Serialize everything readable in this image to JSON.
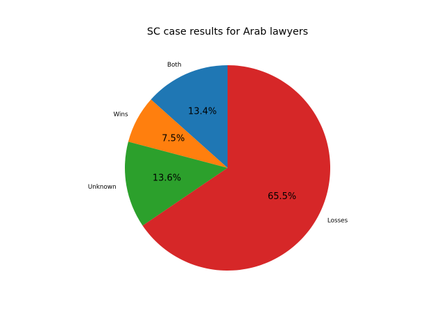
{
  "chart_data": {
    "type": "pie",
    "title": "SC case results for Arab lawyers",
    "slices": [
      {
        "label": "Both",
        "value": 13.4,
        "pct_label": "13.4%",
        "color": "#1f77b4"
      },
      {
        "label": "Wins",
        "value": 7.5,
        "pct_label": "7.5%",
        "color": "#ff7f0e"
      },
      {
        "label": "Unknown",
        "value": 13.6,
        "pct_label": "13.6%",
        "color": "#2ca02c"
      },
      {
        "label": "Losses",
        "value": 65.5,
        "pct_label": "65.5%",
        "color": "#d62728"
      }
    ],
    "start_angle_deg": 90,
    "direction": "counterclockwise",
    "legend": "none"
  }
}
